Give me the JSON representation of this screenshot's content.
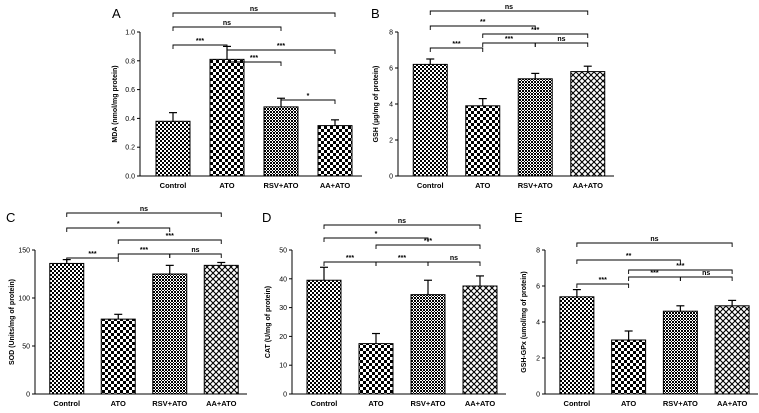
{
  "categories": [
    "Control",
    "ATO",
    "RSV+ATO",
    "AA+ATO"
  ],
  "chart_data": [
    {
      "type": "bar",
      "panel": "A",
      "title": "",
      "xlabel": "",
      "ylabel": "MDA (nmol/mg protein)",
      "categories": [
        "Control",
        "ATO",
        "RSV+ATO",
        "AA+ATO"
      ],
      "values": [
        0.38,
        0.81,
        0.48,
        0.35
      ],
      "errors": [
        0.06,
        0.09,
        0.06,
        0.04
      ],
      "ylim": [
        0,
        1.0
      ],
      "ticks": [
        0.0,
        0.2,
        0.4,
        0.6,
        0.8,
        1.0
      ],
      "tick_labels": [
        "0.0",
        "0.2",
        "0.4",
        "0.6",
        "0.8",
        "1.0"
      ],
      "significance": [
        {
          "a": 0,
          "b": 1,
          "label": "***"
        },
        {
          "a": 1,
          "b": 2,
          "label": "***"
        },
        {
          "a": 2,
          "b": 3,
          "label": "*"
        },
        {
          "a": 0,
          "b": 2,
          "label": "ns"
        },
        {
          "a": 1,
          "b": 3,
          "label": "***"
        },
        {
          "a": 0,
          "b": 3,
          "label": "ns"
        }
      ],
      "patterns": [
        "dots",
        "checker",
        "dense",
        "checker"
      ]
    },
    {
      "type": "bar",
      "panel": "B",
      "title": "",
      "xlabel": "",
      "ylabel": "GSH (µg/mg of protein)",
      "categories": [
        "Control",
        "ATO",
        "RSV+ATO",
        "AA+ATO"
      ],
      "values": [
        6.2,
        3.9,
        5.4,
        5.8
      ],
      "errors": [
        0.3,
        0.4,
        0.3,
        0.3
      ],
      "ylim": [
        0,
        8
      ],
      "ticks": [
        0,
        2,
        4,
        6,
        8
      ],
      "tick_labels": [
        "0",
        "2",
        "4",
        "6",
        "8"
      ],
      "significance": [
        {
          "a": 0,
          "b": 1,
          "label": "***"
        },
        {
          "a": 1,
          "b": 2,
          "label": "***"
        },
        {
          "a": 2,
          "b": 3,
          "label": "ns"
        },
        {
          "a": 1,
          "b": 3,
          "label": "***"
        },
        {
          "a": 0,
          "b": 2,
          "label": "**"
        },
        {
          "a": 0,
          "b": 3,
          "label": "ns"
        }
      ],
      "patterns": [
        "dots",
        "checker",
        "dense",
        "cross"
      ]
    },
    {
      "type": "bar",
      "panel": "C",
      "title": "",
      "xlabel": "",
      "ylabel": "SOD (Units/mg of protein)",
      "categories": [
        "Control",
        "ATO",
        "RSV+ATO",
        "AA+ATO"
      ],
      "values": [
        136,
        78,
        125,
        134
      ],
      "errors": [
        4,
        5,
        9,
        3
      ],
      "ylim": [
        0,
        150
      ],
      "ticks": [
        0,
        50,
        100,
        150
      ],
      "tick_labels": [
        "0",
        "50",
        "100",
        "150"
      ],
      "significance": [
        {
          "a": 0,
          "b": 1,
          "label": "***"
        },
        {
          "a": 1,
          "b": 2,
          "label": "***"
        },
        {
          "a": 2,
          "b": 3,
          "label": "ns"
        },
        {
          "a": 1,
          "b": 3,
          "label": "***"
        },
        {
          "a": 0,
          "b": 2,
          "label": "*"
        },
        {
          "a": 0,
          "b": 3,
          "label": "ns"
        }
      ],
      "patterns": [
        "dots",
        "checker",
        "dense",
        "cross"
      ]
    },
    {
      "type": "bar",
      "panel": "D",
      "title": "",
      "xlabel": "",
      "ylabel": "CAT (U/mg of protein)",
      "categories": [
        "Control",
        "ATO",
        "RSV+ATO",
        "AA+ATO"
      ],
      "values": [
        39.5,
        17.5,
        34.5,
        37.5
      ],
      "errors": [
        4.5,
        3.5,
        5,
        3.5
      ],
      "ylim": [
        0,
        50
      ],
      "ticks": [
        0,
        10,
        20,
        30,
        40,
        50
      ],
      "tick_labels": [
        "0",
        "10",
        "20",
        "30",
        "40",
        "50"
      ],
      "significance": [
        {
          "a": 0,
          "b": 1,
          "label": "***"
        },
        {
          "a": 1,
          "b": 2,
          "label": "***"
        },
        {
          "a": 2,
          "b": 3,
          "label": "ns"
        },
        {
          "a": 1,
          "b": 3,
          "label": "***"
        },
        {
          "a": 0,
          "b": 2,
          "label": "*"
        },
        {
          "a": 0,
          "b": 3,
          "label": "ns"
        }
      ],
      "patterns": [
        "dots",
        "checker",
        "dense",
        "cross"
      ]
    },
    {
      "type": "bar",
      "panel": "E",
      "title": "",
      "xlabel": "",
      "ylabel": "GSH-GPx (umol/mg of protein)",
      "categories": [
        "Control",
        "ATO",
        "RSV+ATO",
        "AA+ATO"
      ],
      "values": [
        5.4,
        3.0,
        4.6,
        4.9
      ],
      "errors": [
        0.4,
        0.5,
        0.3,
        0.3
      ],
      "ylim": [
        0,
        8
      ],
      "ticks": [
        0,
        2,
        4,
        6,
        8
      ],
      "tick_labels": [
        "0",
        "2",
        "4",
        "6",
        "8"
      ],
      "significance": [
        {
          "a": 0,
          "b": 1,
          "label": "***"
        },
        {
          "a": 1,
          "b": 2,
          "label": "***"
        },
        {
          "a": 2,
          "b": 3,
          "label": "ns"
        },
        {
          "a": 1,
          "b": 3,
          "label": "***"
        },
        {
          "a": 0,
          "b": 2,
          "label": "**"
        },
        {
          "a": 0,
          "b": 3,
          "label": "ns"
        }
      ],
      "patterns": [
        "dots",
        "checker",
        "dense",
        "cross"
      ]
    }
  ]
}
